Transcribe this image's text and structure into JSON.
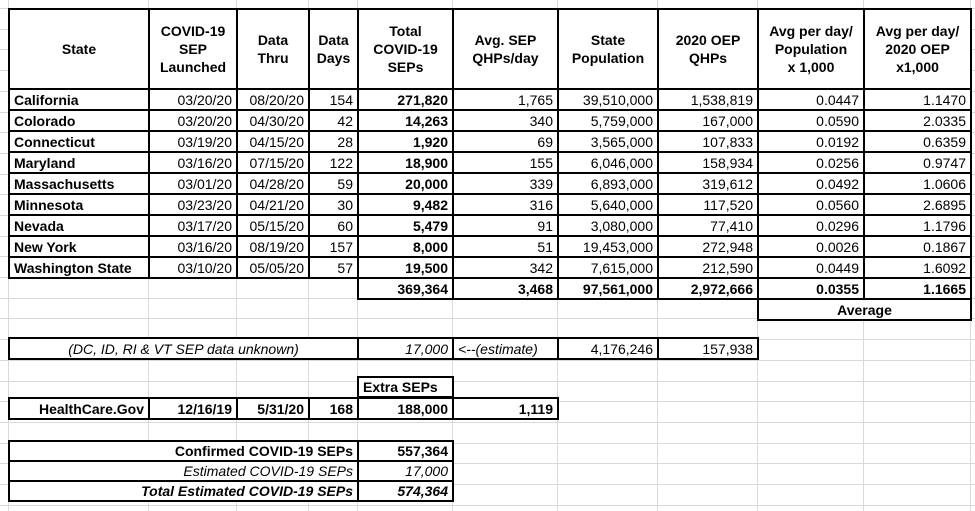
{
  "sheet": {
    "main_table": {
      "headers": [
        "State",
        "COVID-19\nSEP\nLaunched",
        "Data\nThru",
        "Data\nDays",
        "Total\nCOVID-19\nSEPs",
        "Avg. SEP\nQHPs/day",
        "State\nPopulation",
        "2020 OEP\nQHPs",
        "Avg per day/\nPopulation\nx 1,000",
        "Avg per day/\n2020 OEP\nx1,000"
      ],
      "rows": [
        {
          "state": "California",
          "launched": "03/20/20",
          "thru": "08/20/20",
          "days": "154",
          "total_seps": "271,820",
          "avg_qhps_day": "1,765",
          "population": "39,510,000",
          "oep_qhps": "1,538,819",
          "avg_per_pop": "0.0447",
          "avg_per_oep": "1.1470"
        },
        {
          "state": "Colorado",
          "launched": "03/20/20",
          "thru": "04/30/20",
          "days": "42",
          "total_seps": "14,263",
          "avg_qhps_day": "340",
          "population": "5,759,000",
          "oep_qhps": "167,000",
          "avg_per_pop": "0.0590",
          "avg_per_oep": "2.0335"
        },
        {
          "state": "Connecticut",
          "launched": "03/19/20",
          "thru": "04/15/20",
          "days": "28",
          "total_seps": "1,920",
          "avg_qhps_day": "69",
          "population": "3,565,000",
          "oep_qhps": "107,833",
          "avg_per_pop": "0.0192",
          "avg_per_oep": "0.6359"
        },
        {
          "state": "Maryland",
          "launched": "03/16/20",
          "thru": "07/15/20",
          "days": "122",
          "total_seps": "18,900",
          "avg_qhps_day": "155",
          "population": "6,046,000",
          "oep_qhps": "158,934",
          "avg_per_pop": "0.0256",
          "avg_per_oep": "0.9747"
        },
        {
          "state": "Massachusetts",
          "launched": "03/01/20",
          "thru": "04/28/20",
          "days": "59",
          "total_seps": "20,000",
          "avg_qhps_day": "339",
          "population": "6,893,000",
          "oep_qhps": "319,612",
          "avg_per_pop": "0.0492",
          "avg_per_oep": "1.0606"
        },
        {
          "state": "Minnesota",
          "launched": "03/23/20",
          "thru": "04/21/20",
          "days": "30",
          "total_seps": "9,482",
          "avg_qhps_day": "316",
          "population": "5,640,000",
          "oep_qhps": "117,520",
          "avg_per_pop": "0.0560",
          "avg_per_oep": "2.6895"
        },
        {
          "state": "Nevada",
          "launched": "03/17/20",
          "thru": "05/15/20",
          "days": "60",
          "total_seps": "5,479",
          "avg_qhps_day": "91",
          "population": "3,080,000",
          "oep_qhps": "77,410",
          "avg_per_pop": "0.0296",
          "avg_per_oep": "1.1796"
        },
        {
          "state": "New York",
          "launched": "03/16/20",
          "thru": "08/19/20",
          "days": "157",
          "total_seps": "8,000",
          "avg_qhps_day": "51",
          "population": "19,453,000",
          "oep_qhps": "272,948",
          "avg_per_pop": "0.0026",
          "avg_per_oep": "0.1867"
        },
        {
          "state": "Washington State",
          "launched": "03/10/20",
          "thru": "05/05/20",
          "days": "57",
          "total_seps": "19,500",
          "avg_qhps_day": "342",
          "population": "7,615,000",
          "oep_qhps": "212,590",
          "avg_per_pop": "0.0449",
          "avg_per_oep": "1.6092"
        }
      ],
      "totals": {
        "total_seps": "369,364",
        "avg_qhps_day": "3,468",
        "population": "97,561,000",
        "oep_qhps": "2,972,666",
        "avg_per_pop": "0.0355",
        "avg_per_oep": "1.1665"
      },
      "average_label": "Average"
    },
    "unknown_states_row": {
      "note": "(DC, ID, RI & VT SEP data unknown)",
      "estimate_seps": "17,000",
      "estimate_note": "<--(estimate)",
      "population": "4,176,246",
      "oep_qhps": "157,938"
    },
    "extra_seps": {
      "header": "Extra SEPs",
      "name": "HealthCare.Gov",
      "launched": "12/16/19",
      "thru": "5/31/20",
      "days": "168",
      "total_seps": "188,000",
      "avg_qhps_day": "1,119"
    },
    "summary": {
      "confirmed_label": "Confirmed COVID-19 SEPs",
      "confirmed_value": "557,364",
      "estimated_label": "Estimated COVID-19 SEPs",
      "estimated_value": "17,000",
      "total_label": "Total Estimated COVID-19 SEPs",
      "total_value": "574,364"
    }
  }
}
